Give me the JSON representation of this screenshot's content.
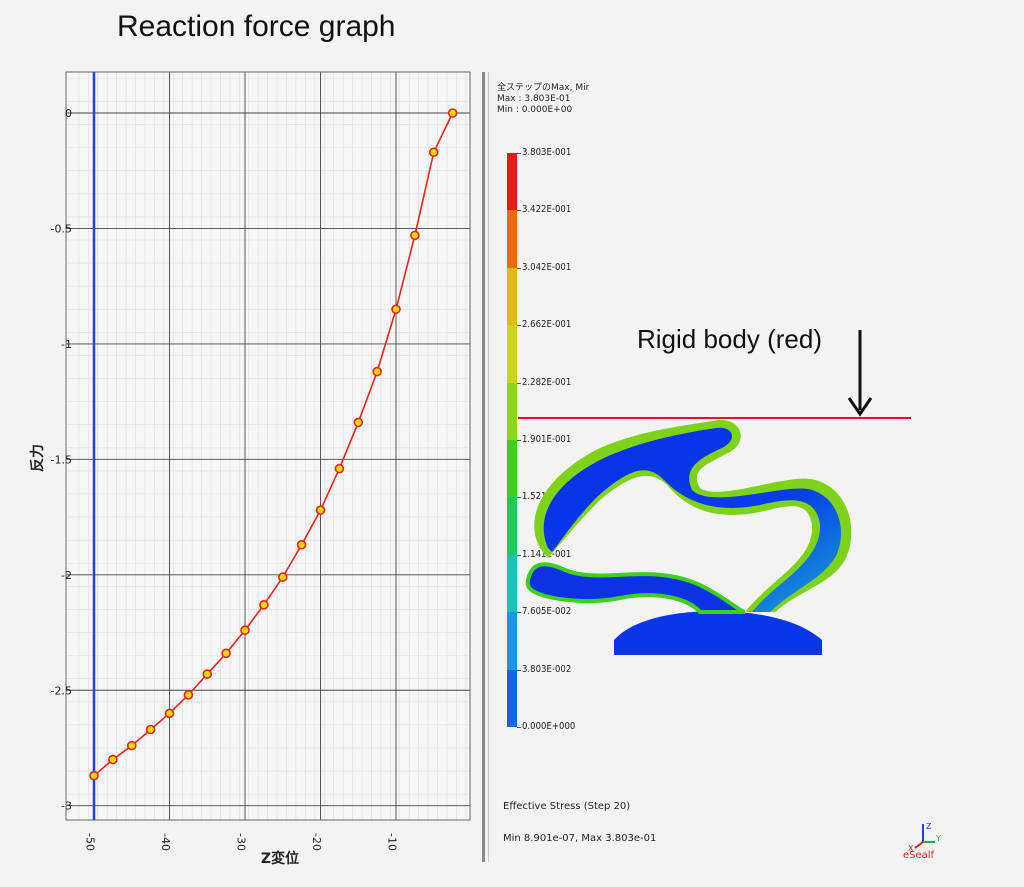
{
  "title": "Reaction force graph",
  "chart_data": {
    "type": "line",
    "title": "",
    "xlabel": "Z変位",
    "ylabel": "反力",
    "xlim": [
      -50,
      3
    ],
    "ylim": [
      -3,
      0.15
    ],
    "xticks": [
      -50,
      -40,
      -30,
      -20,
      -10
    ],
    "xtick_labels": [
      "-50",
      "-40",
      "-30",
      "-20",
      "-10"
    ],
    "yticks": [
      0,
      -0.5,
      -1,
      -1.5,
      -2,
      -2.5,
      -3
    ],
    "ytick_labels": [
      "0",
      "-0.5",
      "-1",
      "-1.5",
      "-2",
      "-2.5",
      "-3"
    ],
    "grid": true,
    "series": [
      {
        "name": "",
        "color": "#e8251a",
        "marker_fill": "#f5d800",
        "x": [
          -50,
          -47.5,
          -45,
          -42.5,
          -40,
          -37.5,
          -35,
          -32.5,
          -30,
          -27.5,
          -25,
          -22.5,
          -20,
          -17.5,
          -15,
          -12.5,
          -10,
          -7.5,
          -5,
          -2.5
        ],
        "y": [
          -2.87,
          -2.8,
          -2.74,
          -2.67,
          -2.6,
          -2.52,
          -2.43,
          -2.34,
          -2.24,
          -2.13,
          -2.01,
          -1.87,
          -1.72,
          -1.54,
          -1.34,
          -1.12,
          -0.85,
          -0.53,
          -0.17,
          0.0
        ]
      }
    ],
    "reference_line": {
      "x": -50,
      "color": "#2a3fd8"
    }
  },
  "legend": {
    "header_lines": [
      "全ステップのMax, Mir",
      "Max : 3.803E-01",
      "Min : 0.000E+00"
    ],
    "labels": [
      "3.803E-001",
      "3.422E-001",
      "3.042E-001",
      "2.662E-001",
      "2.282E-001",
      "1.901E-001",
      "1.521E-001",
      "1.141E-001",
      "7.605E-002",
      "3.803E-002",
      "0.000E+000"
    ],
    "colors": [
      "#e41c14",
      "#e96a12",
      "#e3b915",
      "#c8d51a",
      "#8cd61a",
      "#3fcf1e",
      "#1fc95a",
      "#19c2b2",
      "#1a95e2",
      "#1564e6",
      "#1023e6"
    ]
  },
  "annotation": {
    "rigid_label": "Rigid body (red)",
    "rigid_color": "#d6191b"
  },
  "footer": {
    "line1": "Effective Stress (Step 20)",
    "line2": "Min 8.901e-07, Max 3.803e-01",
    "logo_text": "eSealf"
  }
}
